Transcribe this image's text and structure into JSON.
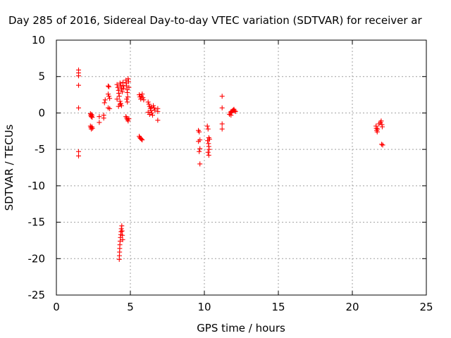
{
  "chart_data": {
    "type": "scatter",
    "title": "Day 285 of 2016, Sidereal Day-to-day VTEC variation (SDTVAR) for receiver ar",
    "xlabel": "GPS time / hours",
    "ylabel": "SDTVAR / TECUs",
    "xlim": [
      0,
      25
    ],
    "ylim": [
      -25,
      10
    ],
    "x_ticks": [
      0,
      5,
      10,
      15,
      20,
      25
    ],
    "y_ticks": [
      -25,
      -20,
      -15,
      -10,
      -5,
      0,
      5,
      10
    ],
    "x_tick_labels": [
      "0",
      "5",
      "10",
      "15",
      "20",
      "25"
    ],
    "y_tick_labels": [
      "-25",
      "-20",
      "-15",
      "-10",
      "-5",
      "0",
      "5",
      "10"
    ],
    "grid": true,
    "marker": "+",
    "color": "#ff0000",
    "series": [
      {
        "name": "SDTVAR",
        "points": [
          [
            1.5,
            5.9
          ],
          [
            1.5,
            5.5
          ],
          [
            1.5,
            5.1
          ],
          [
            1.5,
            3.8
          ],
          [
            1.5,
            0.7
          ],
          [
            1.5,
            -5.3
          ],
          [
            1.5,
            -5.9
          ],
          [
            2.3,
            -0.1
          ],
          [
            2.32,
            -0.3
          ],
          [
            2.35,
            -0.5
          ],
          [
            2.38,
            -0.2
          ],
          [
            2.4,
            -0.4
          ],
          [
            2.42,
            -0.6
          ],
          [
            2.3,
            -1.8
          ],
          [
            2.33,
            -2.0
          ],
          [
            2.36,
            -2.2
          ],
          [
            2.4,
            -1.9
          ],
          [
            2.44,
            -2.1
          ],
          [
            2.9,
            -0.5
          ],
          [
            2.9,
            -1.3
          ],
          [
            3.2,
            -0.3
          ],
          [
            3.2,
            -0.7
          ],
          [
            3.25,
            1.4
          ],
          [
            3.3,
            1.8
          ],
          [
            3.5,
            3.7
          ],
          [
            3.55,
            3.6
          ],
          [
            3.5,
            2.6
          ],
          [
            3.55,
            2.3
          ],
          [
            3.6,
            2.0
          ],
          [
            3.5,
            0.7
          ],
          [
            3.6,
            0.6
          ],
          [
            4.1,
            3.9
          ],
          [
            4.15,
            3.5
          ],
          [
            4.2,
            3.1
          ],
          [
            4.22,
            2.7
          ],
          [
            4.25,
            2.3
          ],
          [
            4.1,
            1.9
          ],
          [
            4.3,
            4.1
          ],
          [
            4.35,
            3.7
          ],
          [
            4.4,
            3.3
          ],
          [
            4.45,
            2.9
          ],
          [
            4.3,
            1.6
          ],
          [
            4.35,
            1.3
          ],
          [
            4.4,
            1.0
          ],
          [
            4.5,
            4.2
          ],
          [
            4.5,
            3.8
          ],
          [
            4.55,
            3.4
          ],
          [
            4.2,
            0.9
          ],
          [
            4.3,
            1.2
          ],
          [
            4.7,
            4.5
          ],
          [
            4.72,
            4.1
          ],
          [
            4.75,
            3.7
          ],
          [
            4.78,
            3.2
          ],
          [
            4.8,
            2.8
          ],
          [
            4.82,
            2.2
          ],
          [
            4.85,
            4.7
          ],
          [
            4.88,
            4.3
          ],
          [
            4.9,
            3.5
          ],
          [
            4.75,
            1.9
          ],
          [
            4.8,
            1.5
          ],
          [
            4.7,
            -0.5
          ],
          [
            4.75,
            -0.7
          ],
          [
            4.8,
            -0.9
          ],
          [
            4.85,
            -1.1
          ],
          [
            4.9,
            -0.8
          ],
          [
            4.25,
            -20.1
          ],
          [
            4.26,
            -19.6
          ],
          [
            4.27,
            -19.1
          ],
          [
            4.28,
            -18.6
          ],
          [
            4.29,
            -18.1
          ],
          [
            4.31,
            -17.6
          ],
          [
            4.33,
            -17.1
          ],
          [
            4.35,
            -16.7
          ],
          [
            4.37,
            -16.3
          ],
          [
            4.39,
            -15.9
          ],
          [
            4.42,
            -15.5
          ],
          [
            4.44,
            -16.2
          ],
          [
            4.46,
            -16.8
          ],
          [
            4.48,
            -17.4
          ],
          [
            5.6,
            2.5
          ],
          [
            5.65,
            2.2
          ],
          [
            5.7,
            1.9
          ],
          [
            5.75,
            2.3
          ],
          [
            5.8,
            2.6
          ],
          [
            5.85,
            2.1
          ],
          [
            5.9,
            1.8
          ],
          [
            5.6,
            -3.2
          ],
          [
            5.65,
            -3.4
          ],
          [
            5.7,
            -3.5
          ],
          [
            5.75,
            -3.6
          ],
          [
            5.8,
            -3.7
          ],
          [
            6.2,
            1.5
          ],
          [
            6.25,
            1.2
          ],
          [
            6.3,
            0.9
          ],
          [
            6.35,
            0.6
          ],
          [
            6.4,
            0.3
          ],
          [
            6.45,
            0.0
          ],
          [
            6.5,
            -0.3
          ],
          [
            6.55,
            1.0
          ],
          [
            6.6,
            0.7
          ],
          [
            6.65,
            0.4
          ],
          [
            6.2,
            0.1
          ],
          [
            6.3,
            -0.2
          ],
          [
            6.4,
            0.8
          ],
          [
            6.85,
            0.6
          ],
          [
            6.85,
            0.2
          ],
          [
            6.85,
            -1.0
          ],
          [
            9.6,
            -2.4
          ],
          [
            9.65,
            -2.6
          ],
          [
            9.7,
            -3.7
          ],
          [
            9.6,
            -3.9
          ],
          [
            9.7,
            -4.9
          ],
          [
            9.65,
            -5.3
          ],
          [
            9.7,
            -7.0
          ],
          [
            10.2,
            -1.8
          ],
          [
            10.25,
            -2.2
          ],
          [
            10.3,
            -3.4
          ],
          [
            10.22,
            -3.8
          ],
          [
            10.28,
            -4.2
          ],
          [
            10.3,
            -4.6
          ],
          [
            10.32,
            -5.0
          ],
          [
            10.25,
            -5.4
          ],
          [
            10.3,
            -5.8
          ],
          [
            10.35,
            -3.6
          ],
          [
            11.2,
            2.3
          ],
          [
            11.2,
            0.7
          ],
          [
            11.2,
            -1.5
          ],
          [
            11.2,
            -2.2
          ],
          [
            11.7,
            -0.2
          ],
          [
            11.75,
            0.0
          ],
          [
            11.8,
            0.2
          ],
          [
            11.85,
            0.1
          ],
          [
            11.9,
            0.3
          ],
          [
            11.95,
            0.4
          ],
          [
            12.0,
            0.5
          ],
          [
            12.05,
            0.3
          ],
          [
            12.1,
            0.2
          ],
          [
            11.8,
            -0.3
          ],
          [
            21.6,
            -1.8
          ],
          [
            21.62,
            -2.1
          ],
          [
            21.65,
            -2.4
          ],
          [
            21.68,
            -2.6
          ],
          [
            21.7,
            -2.2
          ],
          [
            21.8,
            -1.5
          ],
          [
            21.9,
            -1.3
          ],
          [
            21.95,
            -1.1
          ],
          [
            22.0,
            -1.6
          ],
          [
            22.02,
            -1.9
          ],
          [
            21.98,
            -4.3
          ],
          [
            22.05,
            -4.4
          ]
        ]
      }
    ]
  }
}
